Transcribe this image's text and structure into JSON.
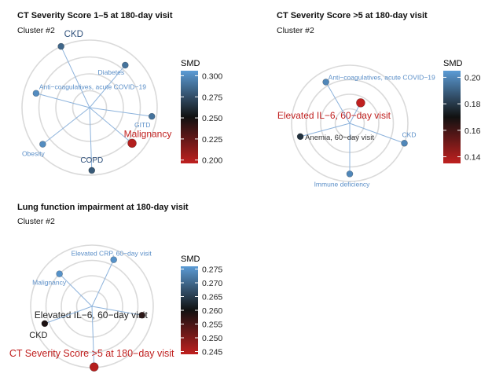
{
  "colors": {
    "low": "#c0201f",
    "mid": "#111111",
    "high": "#5b9bd5",
    "spoke": "#8db3dc",
    "ring": "#dadada",
    "label": "#5b8fc8"
  },
  "chart_data": [
    {
      "type": "radar",
      "title": "CT Severity Score 1–5 at 180-day visit",
      "subtitle": "Cluster #2",
      "legend_title": "SMD",
      "color_range": [
        0.196,
        0.306
      ],
      "legend_ticks": [
        "0.300",
        "0.275",
        "0.250",
        "0.225",
        "0.200"
      ],
      "points": [
        {
          "label": "CKD",
          "smd": 0.285,
          "angle": -25,
          "r": 1.0
        },
        {
          "label": "Diabetes",
          "smd": 0.29,
          "angle": 40,
          "r": 0.82
        },
        {
          "label": "GITD",
          "smd": 0.29,
          "angle": 98,
          "r": 0.93
        },
        {
          "label": "Malignancy",
          "smd": 0.2,
          "angle": 130,
          "r": 0.82
        },
        {
          "label": "COPD",
          "smd": 0.28,
          "angle": 178,
          "r": 0.93
        },
        {
          "label": "Obesity",
          "smd": 0.3,
          "angle": 232,
          "r": 0.88
        },
        {
          "label": "Anti−coagulatives, acute COVID−19",
          "smd": 0.3,
          "angle": 285,
          "r": 0.82
        }
      ]
    },
    {
      "type": "radar",
      "title": "CT Severity Score >5 at 180-day visit",
      "subtitle": "Cluster #2",
      "legend_title": "SMD",
      "color_range": [
        0.135,
        0.205
      ],
      "legend_ticks": [
        "0.20",
        "0.18",
        "0.16",
        "0.14"
      ],
      "points": [
        {
          "label": "Elevated IL−6, 60−day visit",
          "smd": 0.135,
          "angle": 28,
          "r": 0.4
        },
        {
          "label": "CKD",
          "smd": 0.2,
          "angle": 110,
          "r": 1.0
        },
        {
          "label": "Immune deficiency",
          "smd": 0.2,
          "angle": 180,
          "r": 0.87
        },
        {
          "label": "Anemia, 60−day visit",
          "smd": 0.178,
          "angle": 255,
          "r": 0.88
        },
        {
          "label": "Anti−coagulatives, acute COVID−19",
          "smd": 0.2,
          "angle": 330,
          "r": 0.82
        }
      ]
    },
    {
      "type": "radar",
      "title": "Lung function impairment at 180-day visit",
      "subtitle": "Cluster #2",
      "legend_title": "SMD",
      "color_range": [
        0.244,
        0.276
      ],
      "legend_ticks": [
        "0.275",
        "0.270",
        "0.265",
        "0.260",
        "0.255",
        "0.250",
        "0.245"
      ],
      "points": [
        {
          "label": "Elevated CRP, 60−day visit",
          "smd": 0.275,
          "angle": 25,
          "r": 0.84
        },
        {
          "label": "Elevated IL−6, 60−day visit",
          "smd": 0.257,
          "angle": 100,
          "r": 0.83
        },
        {
          "label": "CT Severity Score >5 at 180−day visit",
          "smd": 0.245,
          "angle": 178,
          "r": 0.99
        },
        {
          "label": "CKD",
          "smd": 0.259,
          "angle": 250,
          "r": 0.82
        },
        {
          "label": "Malignancy",
          "smd": 0.275,
          "angle": 315,
          "r": 0.75
        }
      ]
    }
  ]
}
